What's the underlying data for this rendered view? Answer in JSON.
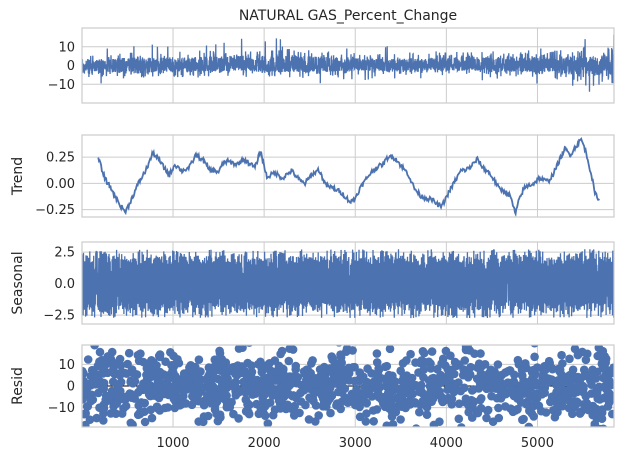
{
  "colors": {
    "series": "#4c72b0",
    "grid": "#cccccc",
    "frame": "#cccccc",
    "text": "#262626",
    "zero_line": "#000000"
  },
  "chart_data": [
    {
      "type": "line",
      "title": "NATURAL GAS_Percent_Change",
      "ylabel": "",
      "ylim": [
        -20,
        20
      ],
      "yticks": [
        10,
        0,
        -10
      ],
      "ytick_labels": [
        "10",
        "0",
        "−10"
      ],
      "xlim": [
        1,
        5840
      ],
      "series": [
        {
          "kind": "noise",
          "n": 5840,
          "envelope": [
            {
              "x": 1,
              "lo": -8,
              "hi": 8
            },
            {
              "x": 600,
              "lo": -13,
              "hi": 13
            },
            {
              "x": 800,
              "lo": -10,
              "hi": 12
            },
            {
              "x": 1200,
              "lo": -11,
              "hi": 13
            },
            {
              "x": 1700,
              "lo": -9,
              "hi": 15
            },
            {
              "x": 2500,
              "lo": -11,
              "hi": 15
            },
            {
              "x": 3000,
              "lo": -8,
              "hi": 11
            },
            {
              "x": 3500,
              "lo": -8,
              "hi": 10
            },
            {
              "x": 4400,
              "lo": -8,
              "hi": 14
            },
            {
              "x": 5000,
              "lo": -11,
              "hi": 12
            },
            {
              "x": 5400,
              "lo": -14,
              "hi": 15
            },
            {
              "x": 5840,
              "lo": -17,
              "hi": 17
            }
          ]
        }
      ]
    },
    {
      "type": "line",
      "title": "",
      "ylabel": "Trend",
      "ylim": [
        -0.32,
        0.46
      ],
      "yticks": [
        0.25,
        0.0,
        -0.25
      ],
      "ytick_labels": [
        "0.25",
        "0.00",
        "−0.25"
      ],
      "xlim": [
        1,
        5840
      ],
      "series": [
        {
          "kind": "trend",
          "points": [
            [
              180,
              0.24
            ],
            [
              250,
              0.05
            ],
            [
              320,
              -0.05
            ],
            [
              380,
              -0.15
            ],
            [
              430,
              -0.22
            ],
            [
              480,
              -0.27
            ],
            [
              560,
              -0.12
            ],
            [
              620,
              0.0
            ],
            [
              700,
              0.12
            ],
            [
              780,
              0.29
            ],
            [
              850,
              0.22
            ],
            [
              900,
              0.15
            ],
            [
              960,
              0.08
            ],
            [
              1020,
              0.18
            ],
            [
              1100,
              0.12
            ],
            [
              1180,
              0.15
            ],
            [
              1250,
              0.27
            ],
            [
              1330,
              0.22
            ],
            [
              1400,
              0.13
            ],
            [
              1500,
              0.11
            ],
            [
              1560,
              0.2
            ],
            [
              1600,
              0.21
            ],
            [
              1700,
              0.18
            ],
            [
              1780,
              0.23
            ],
            [
              1900,
              0.15
            ],
            [
              1960,
              0.31
            ],
            [
              2030,
              0.06
            ],
            [
              2120,
              0.1
            ],
            [
              2200,
              0.05
            ],
            [
              2300,
              0.12
            ],
            [
              2400,
              0.02
            ],
            [
              2450,
              0.0
            ],
            [
              2520,
              0.08
            ],
            [
              2600,
              0.13
            ],
            [
              2680,
              -0.02
            ],
            [
              2770,
              -0.05
            ],
            [
              2850,
              -0.09
            ],
            [
              2950,
              -0.18
            ],
            [
              3000,
              -0.14
            ],
            [
              3050,
              -0.05
            ],
            [
              3150,
              0.08
            ],
            [
              3230,
              0.15
            ],
            [
              3300,
              0.18
            ],
            [
              3370,
              0.26
            ],
            [
              3440,
              0.24
            ],
            [
              3500,
              0.17
            ],
            [
              3580,
              0.09
            ],
            [
              3650,
              -0.05
            ],
            [
              3720,
              -0.12
            ],
            [
              3780,
              -0.14
            ],
            [
              3850,
              -0.16
            ],
            [
              3900,
              -0.2
            ],
            [
              3950,
              -0.22
            ],
            [
              4000,
              -0.13
            ],
            [
              4080,
              0.0
            ],
            [
              4160,
              0.12
            ],
            [
              4220,
              0.13
            ],
            [
              4280,
              0.17
            ],
            [
              4340,
              0.23
            ],
            [
              4400,
              0.15
            ],
            [
              4460,
              0.11
            ],
            [
              4520,
              0.04
            ],
            [
              4580,
              -0.05
            ],
            [
              4650,
              -0.08
            ],
            [
              4700,
              -0.12
            ],
            [
              4760,
              -0.29
            ],
            [
              4800,
              -0.15
            ],
            [
              4850,
              -0.05
            ],
            [
              4900,
              -0.02
            ],
            [
              4960,
              0.0
            ],
            [
              5020,
              0.05
            ],
            [
              5070,
              0.03
            ],
            [
              5120,
              0.02
            ],
            [
              5180,
              0.1
            ],
            [
              5220,
              0.18
            ],
            [
              5300,
              0.33
            ],
            [
              5360,
              0.27
            ],
            [
              5420,
              0.35
            ],
            [
              5480,
              0.42
            ],
            [
              5520,
              0.33
            ],
            [
              5560,
              0.2
            ],
            [
              5600,
              0.05
            ],
            [
              5630,
              -0.1
            ],
            [
              5680,
              -0.15
            ]
          ]
        }
      ]
    },
    {
      "type": "line",
      "title": "",
      "ylabel": "Seasonal",
      "ylim": [
        -3.2,
        3.3
      ],
      "yticks": [
        2.5,
        0.0,
        -2.5
      ],
      "ytick_labels": [
        "2.5",
        "0.0",
        "−2.5"
      ],
      "xlim": [
        1,
        5840
      ],
      "series": [
        {
          "kind": "periodic",
          "n": 5840,
          "amplitude": 2.8
        }
      ]
    },
    {
      "type": "scatter",
      "title": "",
      "ylabel": "Resid",
      "ylim": [
        -19,
        19
      ],
      "yticks": [
        10,
        0,
        -10
      ],
      "ytick_labels": [
        "10",
        "0",
        "−10"
      ],
      "xlim": [
        1,
        5840
      ],
      "xticks": [
        1000,
        2000,
        3000,
        4000,
        5000
      ],
      "xtick_labels": [
        "1000",
        "2000",
        "3000",
        "4000",
        "5000"
      ],
      "series": [
        {
          "kind": "noise_points",
          "n": 1200,
          "spread": 7
        }
      ]
    }
  ]
}
